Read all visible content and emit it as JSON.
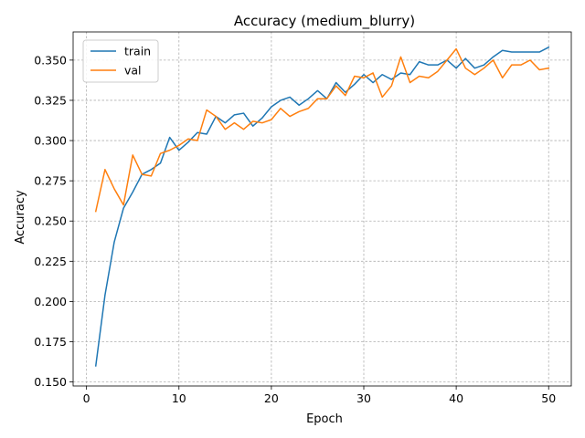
{
  "chart_data": {
    "type": "line",
    "title": "Accuracy (medium_blurry)",
    "xlabel": "Epoch",
    "ylabel": "Accuracy",
    "xlim": [
      -1.45,
      52.45
    ],
    "ylim": [
      0.1475,
      0.3675
    ],
    "xticks": [
      0,
      10,
      20,
      30,
      40,
      50
    ],
    "yticks": [
      0.15,
      0.175,
      0.2,
      0.225,
      0.25,
      0.275,
      0.3,
      0.325,
      0.35
    ],
    "ytick_labels": [
      "0.150",
      "0.175",
      "0.200",
      "0.225",
      "0.250",
      "0.275",
      "0.300",
      "0.325",
      "0.350"
    ],
    "grid": true,
    "legend_position": "top-left",
    "x": [
      1,
      2,
      3,
      4,
      5,
      6,
      7,
      8,
      9,
      10,
      11,
      12,
      13,
      14,
      15,
      16,
      17,
      18,
      19,
      20,
      21,
      22,
      23,
      24,
      25,
      26,
      27,
      28,
      29,
      30,
      31,
      32,
      33,
      34,
      35,
      36,
      37,
      38,
      39,
      40,
      41,
      42,
      43,
      44,
      45,
      46,
      47,
      48,
      49,
      50
    ],
    "series": [
      {
        "name": "train",
        "color": "#1f77b4",
        "values": [
          0.16,
          0.204,
          0.237,
          0.258,
          0.268,
          0.279,
          0.282,
          0.286,
          0.302,
          0.294,
          0.299,
          0.305,
          0.304,
          0.315,
          0.311,
          0.316,
          0.317,
          0.309,
          0.314,
          0.321,
          0.325,
          0.327,
          0.322,
          0.326,
          0.331,
          0.326,
          0.336,
          0.33,
          0.335,
          0.341,
          0.336,
          0.341,
          0.338,
          0.342,
          0.341,
          0.349,
          0.347,
          0.347,
          0.35,
          0.345,
          0.351,
          0.345,
          0.347,
          0.352,
          0.356,
          0.355,
          0.355,
          0.355,
          0.355,
          0.358
        ]
      },
      {
        "name": "val",
        "color": "#ff7f0e",
        "values": [
          0.256,
          0.282,
          0.27,
          0.26,
          0.291,
          0.279,
          0.278,
          0.292,
          0.294,
          0.297,
          0.301,
          0.3,
          0.319,
          0.315,
          0.307,
          0.311,
          0.307,
          0.312,
          0.311,
          0.313,
          0.32,
          0.315,
          0.318,
          0.32,
          0.326,
          0.326,
          0.334,
          0.328,
          0.34,
          0.339,
          0.342,
          0.327,
          0.334,
          0.352,
          0.336,
          0.34,
          0.339,
          0.343,
          0.35,
          0.357,
          0.345,
          0.341,
          0.345,
          0.35,
          0.339,
          0.347,
          0.347,
          0.35,
          0.344,
          0.345
        ]
      }
    ]
  }
}
